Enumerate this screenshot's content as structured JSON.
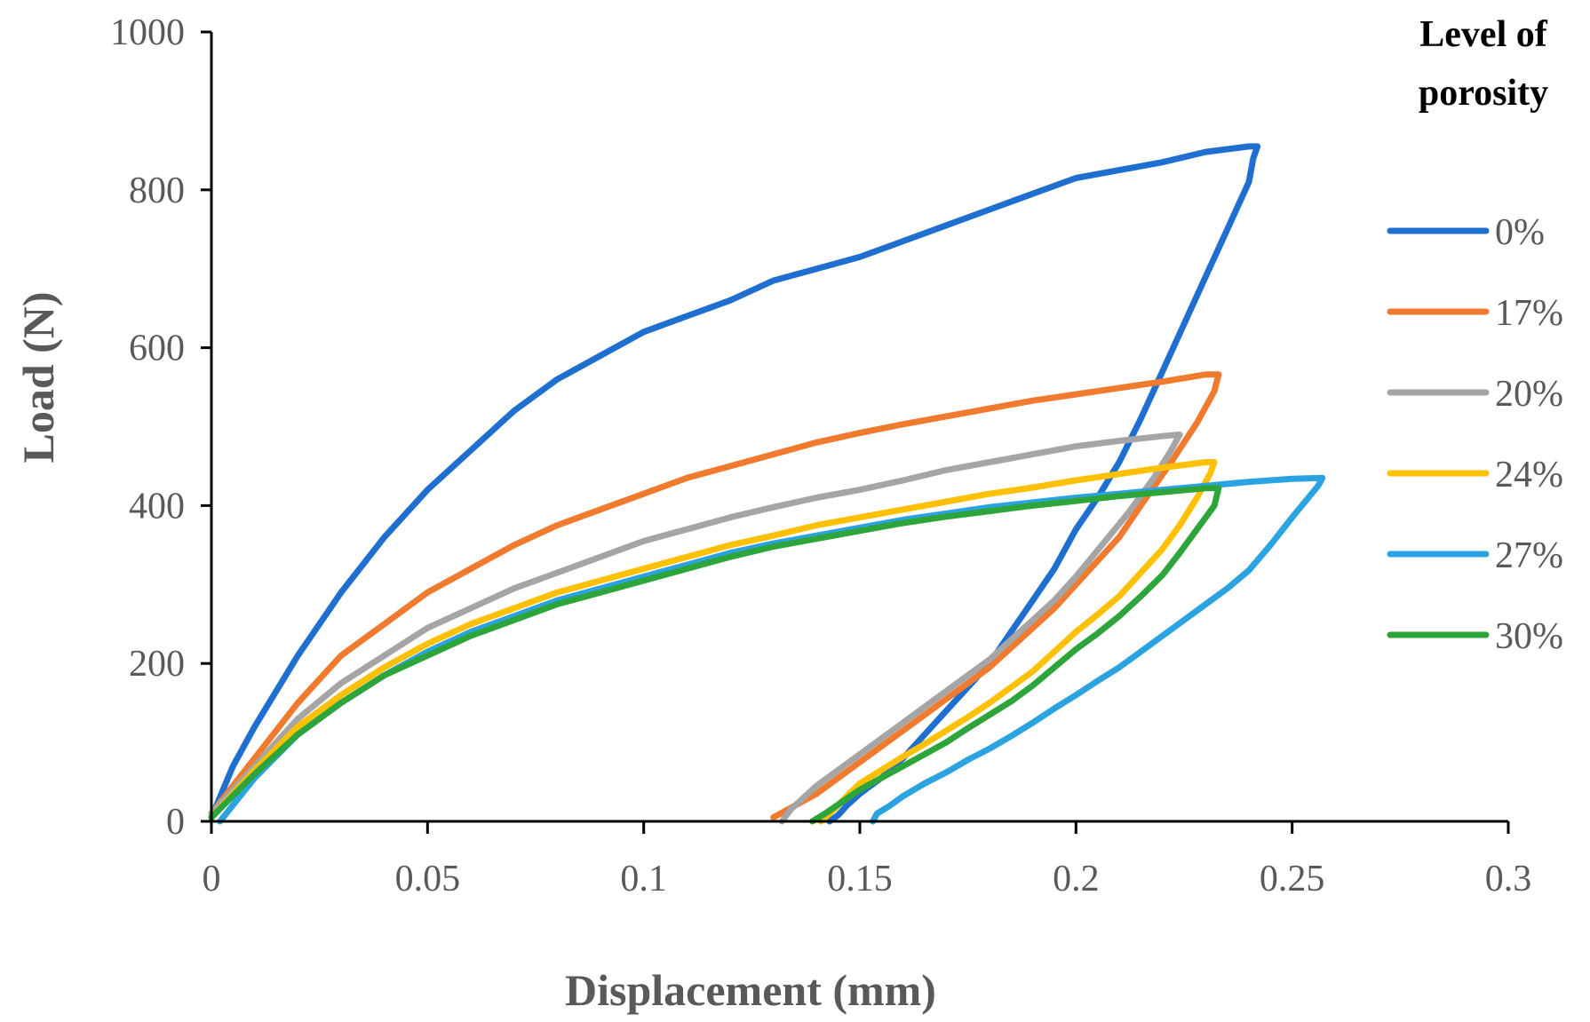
{
  "chart_data": {
    "type": "line",
    "title": "",
    "xlabel": "Displacement (mm)",
    "ylabel": "Load (N)",
    "xlim": [
      0,
      0.3
    ],
    "ylim": [
      0,
      1000
    ],
    "xticks": [
      0,
      0.05,
      0.1,
      0.15,
      0.2,
      0.25,
      0.3
    ],
    "xtick_labels": [
      "0",
      "0.05",
      "0.1",
      "0.15",
      "0.2",
      "0.25",
      "0.3"
    ],
    "yticks": [
      0,
      200,
      400,
      600,
      800,
      1000
    ],
    "ytick_labels": [
      "0",
      "200",
      "400",
      "600",
      "800",
      "1000"
    ],
    "grid": false,
    "legend": {
      "title_lines": [
        "Level of",
        "porosity"
      ],
      "placement": "right"
    },
    "series": [
      {
        "name": "0%",
        "color": "#1F6FD0",
        "x": [
          0.0,
          0.005,
          0.01,
          0.02,
          0.03,
          0.04,
          0.05,
          0.06,
          0.07,
          0.08,
          0.09,
          0.1,
          0.11,
          0.12,
          0.13,
          0.14,
          0.15,
          0.16,
          0.17,
          0.18,
          0.19,
          0.2,
          0.21,
          0.22,
          0.23,
          0.24,
          0.242,
          0.241,
          0.24,
          0.235,
          0.23,
          0.225,
          0.22,
          0.215,
          0.21,
          0.205,
          0.2,
          0.195,
          0.19,
          0.185,
          0.18,
          0.175,
          0.17,
          0.165,
          0.16,
          0.155,
          0.15,
          0.147,
          0.145,
          0.143
        ],
        "y": [
          5,
          70,
          120,
          210,
          290,
          360,
          420,
          470,
          520,
          560,
          590,
          620,
          640,
          660,
          685,
          700,
          715,
          735,
          755,
          775,
          795,
          815,
          825,
          835,
          848,
          855,
          855,
          840,
          810,
          750,
          690,
          630,
          570,
          510,
          455,
          410,
          370,
          320,
          280,
          240,
          200,
          170,
          140,
          110,
          80,
          55,
          35,
          20,
          8,
          0
        ]
      },
      {
        "name": "17%",
        "color": "#F07A2E",
        "x": [
          0.0,
          0.01,
          0.02,
          0.03,
          0.04,
          0.05,
          0.06,
          0.07,
          0.08,
          0.09,
          0.1,
          0.11,
          0.12,
          0.13,
          0.14,
          0.15,
          0.16,
          0.17,
          0.18,
          0.19,
          0.2,
          0.21,
          0.22,
          0.23,
          0.233,
          0.232,
          0.228,
          0.222,
          0.215,
          0.21,
          0.205,
          0.2,
          0.195,
          0.19,
          0.185,
          0.18,
          0.175,
          0.17,
          0.165,
          0.16,
          0.155,
          0.15,
          0.145,
          0.14,
          0.135,
          0.13
        ],
        "y": [
          10,
          80,
          150,
          210,
          250,
          290,
          320,
          350,
          375,
          395,
          415,
          435,
          450,
          465,
          480,
          492,
          503,
          513,
          523,
          533,
          541,
          549,
          557,
          566,
          566,
          545,
          505,
          455,
          400,
          360,
          330,
          300,
          270,
          245,
          220,
          195,
          175,
          155,
          135,
          115,
          95,
          75,
          55,
          35,
          20,
          5
        ]
      },
      {
        "name": "20%",
        "color": "#A5A5A5",
        "x": [
          0.0,
          0.01,
          0.02,
          0.03,
          0.04,
          0.05,
          0.06,
          0.07,
          0.08,
          0.09,
          0.1,
          0.11,
          0.12,
          0.13,
          0.14,
          0.15,
          0.16,
          0.17,
          0.18,
          0.19,
          0.2,
          0.21,
          0.22,
          0.224,
          0.222,
          0.218,
          0.212,
          0.206,
          0.2,
          0.195,
          0.19,
          0.185,
          0.18,
          0.175,
          0.17,
          0.165,
          0.16,
          0.155,
          0.15,
          0.145,
          0.14,
          0.137,
          0.134,
          0.132
        ],
        "y": [
          10,
          70,
          130,
          175,
          210,
          245,
          270,
          295,
          315,
          335,
          355,
          370,
          385,
          398,
          410,
          420,
          432,
          445,
          455,
          465,
          475,
          482,
          488,
          490,
          470,
          435,
          390,
          350,
          310,
          280,
          255,
          230,
          205,
          185,
          165,
          145,
          125,
          105,
          85,
          65,
          45,
          30,
          15,
          0
        ]
      },
      {
        "name": "24%",
        "color": "#FFC000",
        "x": [
          0.0,
          0.01,
          0.02,
          0.03,
          0.04,
          0.05,
          0.06,
          0.07,
          0.08,
          0.09,
          0.1,
          0.11,
          0.12,
          0.13,
          0.14,
          0.15,
          0.16,
          0.17,
          0.18,
          0.19,
          0.2,
          0.21,
          0.22,
          0.23,
          0.232,
          0.231,
          0.228,
          0.224,
          0.22,
          0.215,
          0.21,
          0.205,
          0.2,
          0.195,
          0.19,
          0.185,
          0.18,
          0.175,
          0.17,
          0.165,
          0.16,
          0.155,
          0.15,
          0.147,
          0.144,
          0.141
        ],
        "y": [
          5,
          65,
          120,
          160,
          195,
          225,
          250,
          270,
          290,
          305,
          320,
          335,
          350,
          362,
          375,
          385,
          395,
          405,
          415,
          423,
          432,
          440,
          448,
          455,
          455,
          440,
          410,
          375,
          345,
          315,
          285,
          262,
          240,
          215,
          190,
          170,
          150,
          132,
          115,
          98,
          82,
          65,
          48,
          32,
          15,
          0
        ]
      },
      {
        "name": "27%",
        "color": "#2BA3E0",
        "x": [
          0.002,
          0.01,
          0.02,
          0.03,
          0.04,
          0.05,
          0.06,
          0.07,
          0.08,
          0.09,
          0.1,
          0.11,
          0.12,
          0.13,
          0.14,
          0.15,
          0.16,
          0.17,
          0.18,
          0.19,
          0.2,
          0.21,
          0.22,
          0.23,
          0.24,
          0.25,
          0.257,
          0.256,
          0.25,
          0.245,
          0.24,
          0.235,
          0.23,
          0.225,
          0.22,
          0.215,
          0.21,
          0.205,
          0.2,
          0.195,
          0.19,
          0.185,
          0.18,
          0.175,
          0.17,
          0.165,
          0.16,
          0.157,
          0.154,
          0.153
        ],
        "y": [
          0,
          55,
          110,
          150,
          185,
          215,
          240,
          260,
          280,
          295,
          310,
          325,
          340,
          352,
          362,
          372,
          382,
          390,
          398,
          404,
          410,
          415,
          420,
          425,
          430,
          434,
          435,
          425,
          385,
          350,
          318,
          295,
          275,
          255,
          235,
          215,
          195,
          178,
          160,
          143,
          125,
          108,
          92,
          78,
          62,
          48,
          32,
          20,
          10,
          0
        ]
      },
      {
        "name": "30%",
        "color": "#2EA53A",
        "x": [
          0.0,
          0.01,
          0.02,
          0.03,
          0.04,
          0.05,
          0.06,
          0.07,
          0.08,
          0.09,
          0.1,
          0.11,
          0.12,
          0.13,
          0.14,
          0.15,
          0.16,
          0.17,
          0.18,
          0.19,
          0.2,
          0.21,
          0.22,
          0.23,
          0.233,
          0.232,
          0.228,
          0.224,
          0.22,
          0.215,
          0.21,
          0.205,
          0.2,
          0.195,
          0.19,
          0.185,
          0.18,
          0.175,
          0.17,
          0.165,
          0.16,
          0.155,
          0.15,
          0.146,
          0.142,
          0.139
        ],
        "y": [
          5,
          60,
          110,
          150,
          185,
          210,
          235,
          255,
          275,
          290,
          305,
          320,
          335,
          348,
          358,
          368,
          378,
          386,
          393,
          400,
          406,
          412,
          417,
          422,
          422,
          400,
          370,
          340,
          312,
          285,
          260,
          238,
          218,
          195,
          172,
          152,
          135,
          118,
          100,
          85,
          70,
          55,
          40,
          25,
          10,
          0
        ]
      }
    ]
  }
}
